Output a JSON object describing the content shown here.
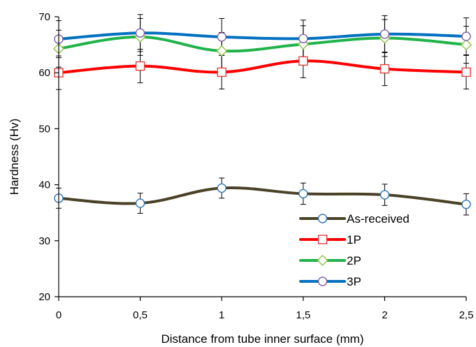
{
  "chart_data": {
    "type": "line",
    "title": "",
    "xlabel": "Distance from tube inner surface (mm)",
    "ylabel": "Hardness (Hv)",
    "x": [
      0,
      0.5,
      1,
      1.5,
      2,
      2.5
    ],
    "x_tick_labels": [
      "0",
      "0,5",
      "1",
      "1,5",
      "2",
      "2,5"
    ],
    "xlim": [
      0,
      2.5
    ],
    "ylim": [
      20,
      70
    ],
    "y_ticks": [
      20,
      30,
      40,
      50,
      60,
      70
    ],
    "y_tick_labels": [
      "20",
      "30",
      "40",
      "50",
      "60",
      "70"
    ],
    "grid": false,
    "legend_position": "bottom-right",
    "series": [
      {
        "name": "As-received",
        "color": "#4a4226",
        "marker": "circle",
        "values": [
          37.6,
          36.7,
          39.4,
          38.4,
          38.2,
          36.5
        ],
        "error": [
          1.8,
          1.8,
          1.8,
          1.9,
          1.9,
          1.9
        ]
      },
      {
        "name": "1P",
        "color": "#ff0000",
        "marker": "square",
        "values": [
          60.0,
          61.2,
          60.1,
          62.1,
          60.7,
          60.1
        ],
        "error": [
          3.0,
          3.0,
          3.0,
          3.0,
          3.0,
          3.0
        ]
      },
      {
        "name": "2P",
        "color": "#21b24b",
        "marker": "diamond",
        "values": [
          64.3,
          66.4,
          63.9,
          65.1,
          66.2,
          65.0
        ],
        "error": [
          3.3,
          3.3,
          3.3,
          3.3,
          3.3,
          3.3
        ]
      },
      {
        "name": "3P",
        "color": "#0070c0",
        "marker": "circle",
        "values": [
          66.0,
          67.1,
          66.4,
          66.1,
          66.9,
          66.5
        ],
        "error": [
          3.3,
          3.3,
          3.3,
          3.3,
          3.3,
          3.3
        ]
      }
    ]
  }
}
